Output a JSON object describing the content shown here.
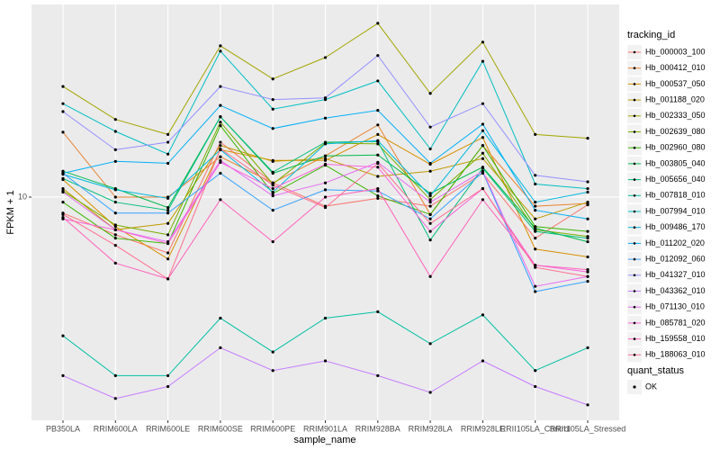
{
  "chart_data": {
    "type": "line",
    "x_label": "sample_name",
    "y_label": "FPKM + 1",
    "categories": [
      "PB350LA",
      "RRIM600LA",
      "RRIM600LE",
      "RRIM600SE",
      "RRIM600PE",
      "RRIM901LA",
      "RRIM928BA",
      "RRIM928LA",
      "RRIM928LE",
      "RRII105LA_Control",
      "RRII105LA_Stressed"
    ],
    "log_y": true,
    "ylim": [
      1.68,
      46.6
    ],
    "yticks": [
      10
    ],
    "grid": true,
    "legend_title": "tracking_id",
    "legend_position": "right",
    "point_color": "#000000",
    "point_legend_title": "quant_status",
    "point_legend_items": [
      "OK"
    ],
    "series": [
      {
        "name": "Hb_000003_100",
        "color": "#F8766D",
        "values": [
          8.8,
          7.4,
          6.4,
          15.5,
          11.2,
          9.3,
          9.9,
          9.3,
          12.1,
          7.2,
          9.4
        ]
      },
      {
        "name": "Hb_000412_010",
        "color": "#EA8331",
        "values": [
          16.8,
          10,
          10,
          13.8,
          11.2,
          13.9,
          17.8,
          8.7,
          15.1,
          9.3,
          9.5
        ]
      },
      {
        "name": "Hb_000537_050",
        "color": "#D89000",
        "values": [
          11.5,
          7.9,
          6.1,
          14.6,
          13.4,
          13.4,
          16.5,
          13.0,
          16.1,
          6.6,
          6.2
        ]
      },
      {
        "name": "Hb_001188_020",
        "color": "#C09B00",
        "values": [
          10.7,
          7.7,
          8.1,
          15.1,
          13.3,
          13.6,
          11.8,
          12.3,
          13.6,
          8.4,
          9.6
        ]
      },
      {
        "name": "Hb_002333_050",
        "color": "#A3A500",
        "values": [
          24.2,
          18.6,
          16.5,
          33.5,
          25.7,
          30.5,
          40.1,
          22.9,
          34.5,
          16.5,
          16.0
        ]
      },
      {
        "name": "Hb_002639_080",
        "color": "#7CAE00",
        "values": [
          10.5,
          8.0,
          7.4,
          18.2,
          11.1,
          15.4,
          15.3,
          9.8,
          14.2,
          7.7,
          7.3
        ]
      },
      {
        "name": "Hb_002960_080",
        "color": "#39B600",
        "values": [
          9.6,
          7.2,
          6.9,
          17.7,
          10.3,
          12.9,
          10.1,
          8.7,
          15.1,
          7.9,
          7.6
        ]
      },
      {
        "name": "Hb_003805_040",
        "color": "#00BB4E",
        "values": [
          12.3,
          10.7,
          9.2,
          19.0,
          12.1,
          13.9,
          14.0,
          10.3,
          12.7,
          7.8,
          7.0
        ]
      },
      {
        "name": "Hb_005656_040",
        "color": "#00BF7D",
        "values": [
          11.6,
          9.6,
          9.0,
          19.0,
          12.2,
          15.5,
          15.6,
          7.1,
          12.6,
          7.6,
          7.2
        ]
      },
      {
        "name": "Hb_007818_010",
        "color": "#00C1A3",
        "values": [
          3.3,
          2.4,
          2.4,
          3.8,
          2.9,
          3.8,
          4.0,
          3.1,
          3.9,
          2.5,
          3.0
        ]
      },
      {
        "name": "Hb_007994_010",
        "color": "#00BFC4",
        "values": [
          21.1,
          16.9,
          14.1,
          32.1,
          20.2,
          21.8,
          25.3,
          14.7,
          29.6,
          11.1,
          10.7
        ]
      },
      {
        "name": "Hb_009486_170",
        "color": "#00BAE0",
        "values": [
          12.0,
          10.6,
          9.9,
          14.6,
          10.4,
          15.3,
          15.7,
          10.1,
          17.0,
          9.6,
          10.4
        ]
      },
      {
        "name": "Hb_011202_020",
        "color": "#00B0F6",
        "values": [
          12.1,
          13.3,
          13.1,
          20.8,
          17.3,
          18.8,
          20.0,
          13.1,
          17.9,
          9.0,
          8.4
        ]
      },
      {
        "name": "Hb_012092_060",
        "color": "#35A2FF",
        "values": [
          12.1,
          8.8,
          8.8,
          12.1,
          9.0,
          10.6,
          10.5,
          8.4,
          12.2,
          4.7,
          5.1
        ]
      },
      {
        "name": "Hb_041327_010",
        "color": "#9590FF",
        "values": [
          19.8,
          14.6,
          15.5,
          24.2,
          21.8,
          22.1,
          31.0,
          17.5,
          21.1,
          11.9,
          11.3
        ]
      },
      {
        "name": "Hb_043362_010",
        "color": "#C77CFF",
        "values": [
          2.4,
          2.0,
          2.2,
          3.0,
          2.5,
          2.7,
          2.4,
          2.1,
          2.7,
          2.2,
          1.9
        ]
      },
      {
        "name": "Hb_071130_010",
        "color": "#E76BF3",
        "values": [
          10.4,
          7.7,
          7.0,
          13.4,
          10.1,
          11.2,
          13.2,
          9.6,
          12.3,
          4.9,
          5.3
        ]
      },
      {
        "name": "Hb_085781_020",
        "color": "#FA62DB",
        "values": [
          8.4,
          7.7,
          6.9,
          13.2,
          10.7,
          13.0,
          12.7,
          7.6,
          10.7,
          5.8,
          5.5
        ]
      },
      {
        "name": "Hb_159558_010",
        "color": "#FF62BC",
        "values": [
          8.5,
          5.9,
          5.2,
          9.8,
          7.0,
          10,
          10.7,
          5.3,
          9.8,
          5.8,
          5.6
        ]
      },
      {
        "name": "Hb_188063_010",
        "color": "#FF6C91",
        "values": [
          8.7,
          6.8,
          5.2,
          14.7,
          11.0,
          9.2,
          13.1,
          8.1,
          10.7,
          5.7,
          5.3
        ]
      }
    ]
  }
}
